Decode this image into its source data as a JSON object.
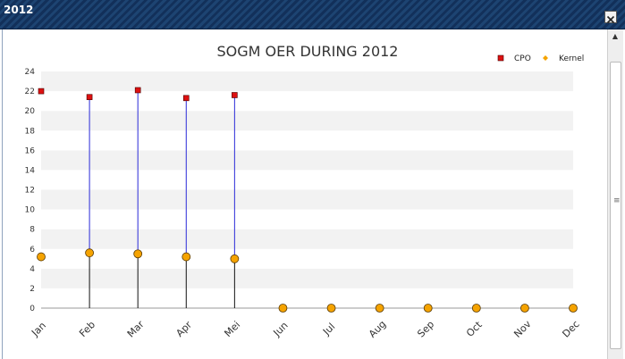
{
  "window": {
    "title": "2012",
    "close_icon": "close-icon"
  },
  "chart_data": {
    "type": "line",
    "title": "SOGM OER DURING 2012",
    "xlabel": "",
    "ylabel": "",
    "categories": [
      "Jan",
      "Feb",
      "Mar",
      "Apr",
      "Mei",
      "Jun",
      "Jul",
      "Aug",
      "Sep",
      "Oct",
      "Nov",
      "Dec"
    ],
    "ylim": [
      0,
      24
    ],
    "yticks": [
      0,
      2,
      4,
      6,
      8,
      10,
      12,
      14,
      16,
      18,
      20,
      22,
      24
    ],
    "grid": "horizontal alternating bands",
    "legend_position": "top-right",
    "series": [
      {
        "name": "CPO",
        "marker": "square",
        "color": "#dd1111",
        "values": [
          22.0,
          21.4,
          22.1,
          21.3,
          21.6,
          null,
          null,
          null,
          null,
          null,
          null,
          null
        ]
      },
      {
        "name": "Kernel",
        "marker": "circle",
        "color": "#f5a300",
        "values": [
          5.2,
          5.6,
          5.5,
          5.2,
          5.0,
          0,
          0,
          0,
          0,
          0,
          0,
          0
        ]
      }
    ],
    "connector_colors": {
      "cpo_to_kernel": "#2a2ad8",
      "kernel_to_axis": "#111111"
    },
    "band_colors": [
      "#f2f2f2",
      "#ffffff"
    ]
  }
}
